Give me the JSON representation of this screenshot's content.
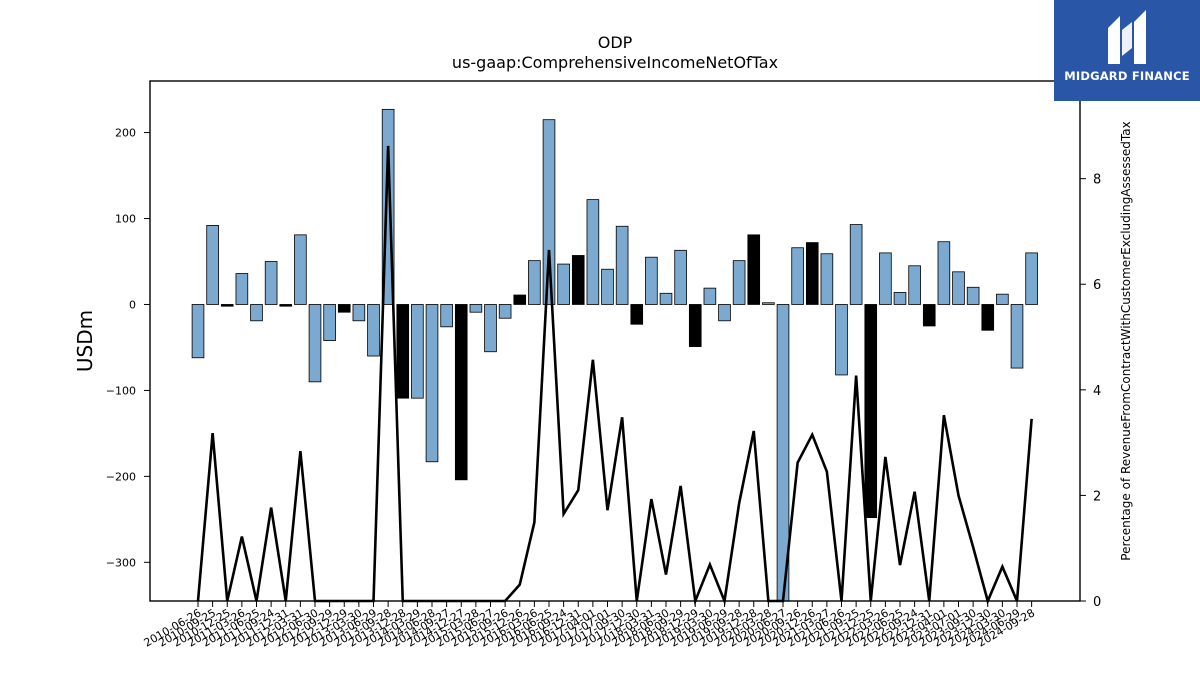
{
  "chart_data": {
    "type": "bar",
    "title": "ODP",
    "subtitle": "us-gaap:ComprehensiveIncomeNetOfTax",
    "ylabel": "USDm",
    "y2label": "Percentage of RevenueFromContractWithCustomerExcludingAssessedTax",
    "ylim": [
      -345,
      260
    ],
    "y2lim": [
      0,
      9.85
    ],
    "yticks": [
      -300,
      -200,
      -100,
      0,
      100,
      200
    ],
    "y2ticks": [
      0,
      2,
      4,
      6,
      8
    ],
    "categories": [
      "2010-06-26",
      "2010-09-25",
      "2010-12-25",
      "2011-03-26",
      "2011-06-25",
      "2011-09-24",
      "2011-12-31",
      "2012-03-31",
      "2012-06-30",
      "2012-09-29",
      "2012-12-29",
      "2013-03-30",
      "2013-06-29",
      "2013-09-28",
      "2013-12-28",
      "2014-03-29",
      "2014-06-28",
      "2014-09-27",
      "2014-12-27",
      "2015-03-28",
      "2015-06-27",
      "2015-09-26",
      "2015-12-26",
      "2016-03-26",
      "2016-06-25",
      "2016-09-24",
      "2016-12-31",
      "2017-04-01",
      "2017-07-01",
      "2017-09-30",
      "2017-12-30",
      "2018-03-31",
      "2018-06-30",
      "2018-09-29",
      "2018-12-29",
      "2019-03-30",
      "2019-06-29",
      "2019-09-28",
      "2019-12-28",
      "2020-03-28",
      "2020-06-27",
      "2020-09-26",
      "2020-12-26",
      "2021-03-27",
      "2021-06-26",
      "2021-09-25",
      "2021-12-25",
      "2022-03-26",
      "2022-06-25",
      "2022-09-24",
      "2022-12-31",
      "2023-04-01",
      "2023-07-01",
      "2023-09-30",
      "2023-12-30",
      "2024-03-30",
      "2024-06-29",
      "2024-09-28"
    ],
    "series": [
      {
        "kind": "bar",
        "values": [
          -62,
          92,
          -2,
          36,
          -19,
          50,
          -2,
          81,
          -90,
          -42,
          -9,
          -19,
          -60,
          227,
          -109,
          -109,
          -183,
          -26,
          -204,
          -9,
          -55,
          -16,
          11,
          51,
          215,
          47,
          57,
          122,
          41,
          91,
          -23,
          55,
          13,
          63,
          -49,
          19,
          -19,
          51,
          81,
          2,
          -345,
          66,
          72,
          59,
          -82,
          93,
          -248,
          60,
          14,
          45,
          -25,
          73,
          38,
          20,
          -30,
          12,
          -74,
          60
        ],
        "colors": [
          "#7ba9cf",
          "#7ba9cf",
          "#000000",
          "#7ba9cf",
          "#7ba9cf",
          "#7ba9cf",
          "#000000",
          "#7ba9cf",
          "#7ba9cf",
          "#7ba9cf",
          "#000000",
          "#7ba9cf",
          "#7ba9cf",
          "#7ba9cf",
          "#000000",
          "#7ba9cf",
          "#7ba9cf",
          "#7ba9cf",
          "#000000",
          "#7ba9cf",
          "#7ba9cf",
          "#7ba9cf",
          "#000000",
          "#7ba9cf",
          "#7ba9cf",
          "#7ba9cf",
          "#000000",
          "#7ba9cf",
          "#7ba9cf",
          "#7ba9cf",
          "#000000",
          "#7ba9cf",
          "#7ba9cf",
          "#7ba9cf",
          "#000000",
          "#7ba9cf",
          "#7ba9cf",
          "#7ba9cf",
          "#000000",
          "#7ba9cf",
          "#7ba9cf",
          "#7ba9cf",
          "#000000",
          "#7ba9cf",
          "#7ba9cf",
          "#7ba9cf",
          "#000000",
          "#7ba9cf",
          "#7ba9cf",
          "#7ba9cf",
          "#000000",
          "#7ba9cf",
          "#7ba9cf",
          "#7ba9cf",
          "#000000",
          "#7ba9cf",
          "#7ba9cf",
          "#7ba9cf"
        ]
      },
      {
        "kind": "line",
        "axis": "right",
        "color": "#000000",
        "values": [
          0,
          3.18,
          0,
          1.22,
          0,
          1.77,
          0,
          2.84,
          0,
          0,
          0,
          0,
          0,
          8.62,
          0,
          0,
          0,
          0,
          0,
          0,
          0,
          0,
          0.31,
          1.49,
          6.65,
          1.65,
          2.1,
          4.57,
          1.72,
          3.48,
          0,
          1.93,
          0.5,
          2.18,
          0,
          0.69,
          0,
          1.85,
          3.22,
          0,
          0,
          2.62,
          3.15,
          2.45,
          0,
          4.27,
          0,
          2.73,
          0.68,
          2.07,
          0,
          3.52,
          2.0,
          1.02,
          0,
          0.65,
          0,
          3.45
        ]
      }
    ]
  },
  "brand": {
    "name": "MIDGARD FINANCE",
    "bg_color": "#2a56a8"
  }
}
